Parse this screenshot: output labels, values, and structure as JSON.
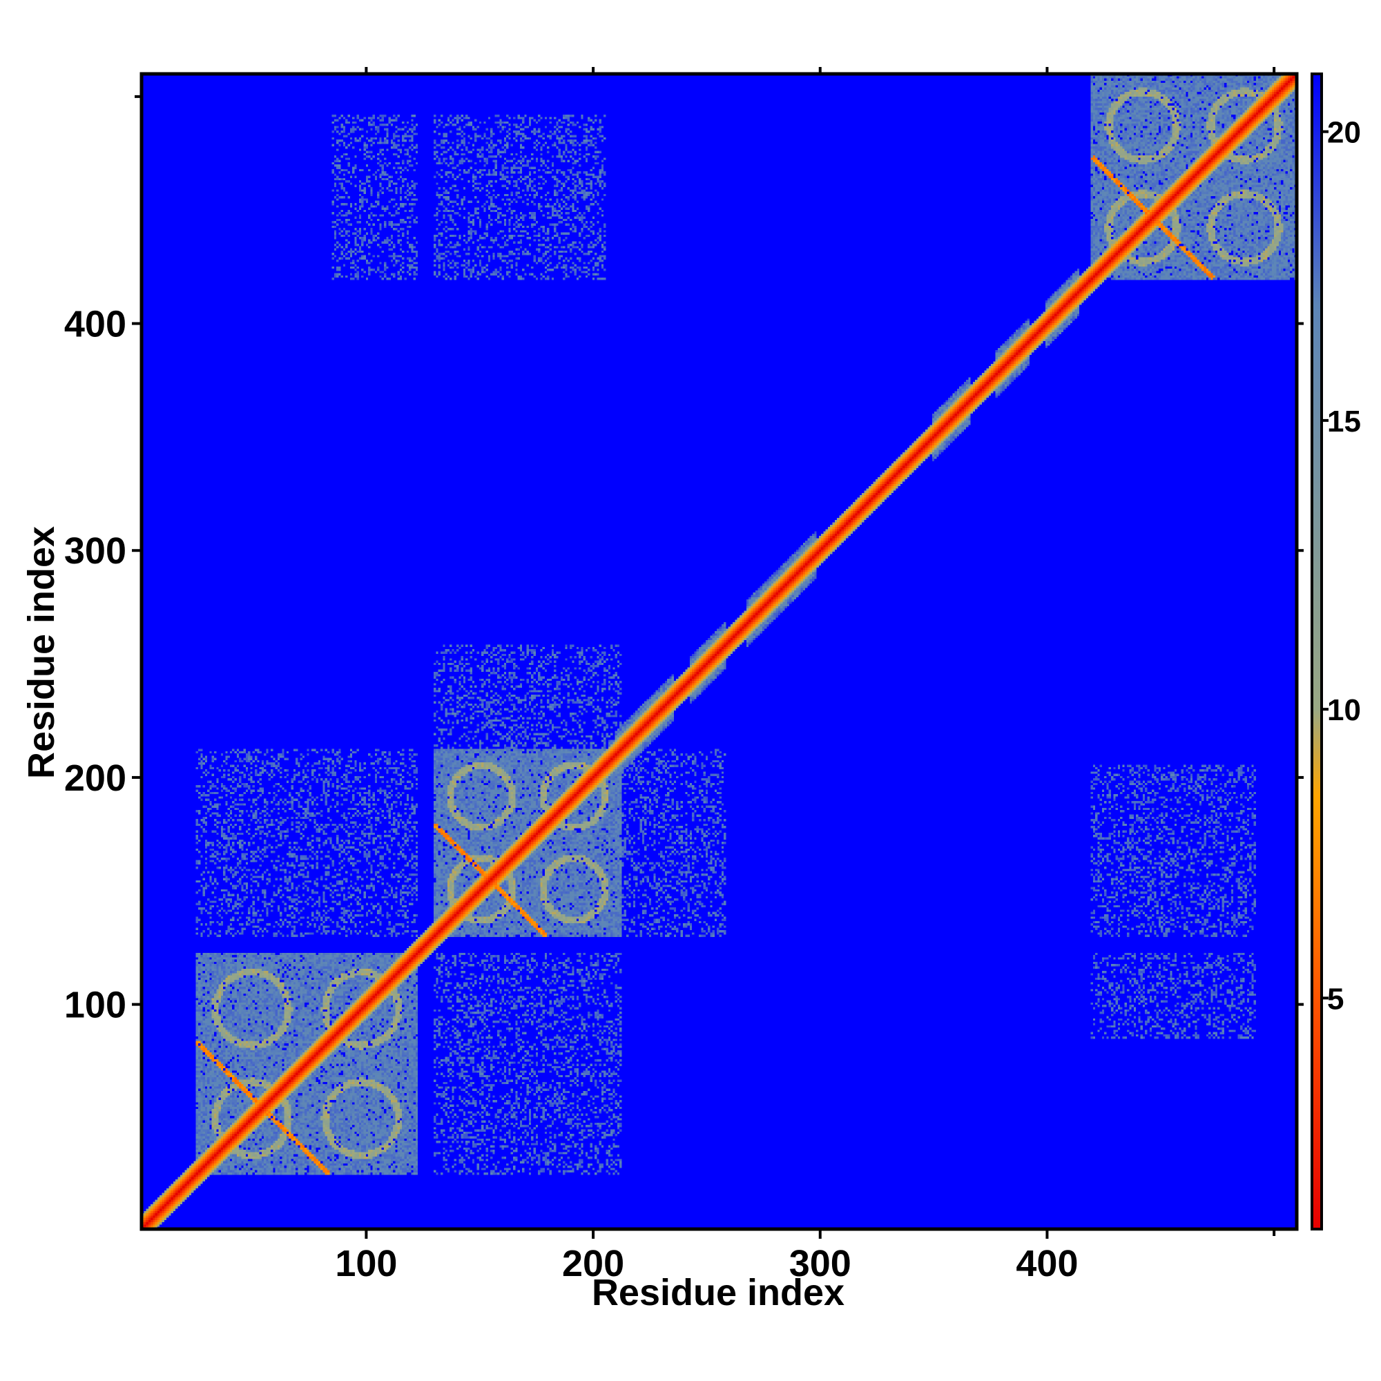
{
  "chart_data": {
    "type": "heatmap",
    "title": "",
    "xlabel": "Residue index",
    "ylabel": "Residue index",
    "n_residues": 510,
    "xlim": [
      1,
      510
    ],
    "ylim": [
      1,
      510
    ],
    "x_ticks": [
      100,
      200,
      300,
      400
    ],
    "y_ticks": [
      100,
      200,
      300,
      400
    ],
    "minor_ticks": [
      0,
      100,
      200,
      300,
      400,
      500
    ],
    "value_range": [
      1,
      21
    ],
    "colorbar": {
      "ticks": [
        5,
        10,
        15,
        20
      ],
      "colors": [
        {
          "value": 1,
          "color": "#e60000"
        },
        {
          "value": 5,
          "color": "#ff5500"
        },
        {
          "value": 8.5,
          "color": "#ffa500"
        },
        {
          "value": 10,
          "color": "#9aa884"
        },
        {
          "value": 17,
          "color": "#5c85b8"
        },
        {
          "value": 21,
          "color": "#0000ff"
        }
      ]
    },
    "background_value": 21,
    "background_color": "#0000ff",
    "diagonal_value": 1,
    "domains": [
      {
        "start": 25,
        "end": 122
      },
      {
        "start": 130,
        "end": 212
      },
      {
        "start": 420,
        "end": 510
      }
    ],
    "diagonal_segments": [
      {
        "start": 210,
        "end": 235
      },
      {
        "start": 243,
        "end": 258
      },
      {
        "start": 268,
        "end": 298
      },
      {
        "start": 350,
        "end": 366
      },
      {
        "start": 378,
        "end": 392
      },
      {
        "start": 400,
        "end": 414
      }
    ],
    "off_diagonal_contacts": [
      {
        "x": [
          130,
          212
        ],
        "y": [
          25,
          122
        ]
      },
      {
        "x": [
          25,
          122
        ],
        "y": [
          130,
          212
        ]
      },
      {
        "x": [
          130,
          212
        ],
        "y": [
          212,
          258
        ]
      },
      {
        "x": [
          212,
          258
        ],
        "y": [
          130,
          212
        ]
      },
      {
        "x": [
          420,
          492
        ],
        "y": [
          130,
          205
        ]
      },
      {
        "x": [
          130,
          205
        ],
        "y": [
          420,
          492
        ]
      },
      {
        "x": [
          420,
          492
        ],
        "y": [
          85,
          122
        ]
      },
      {
        "x": [
          85,
          122
        ],
        "y": [
          420,
          492
        ]
      }
    ]
  }
}
